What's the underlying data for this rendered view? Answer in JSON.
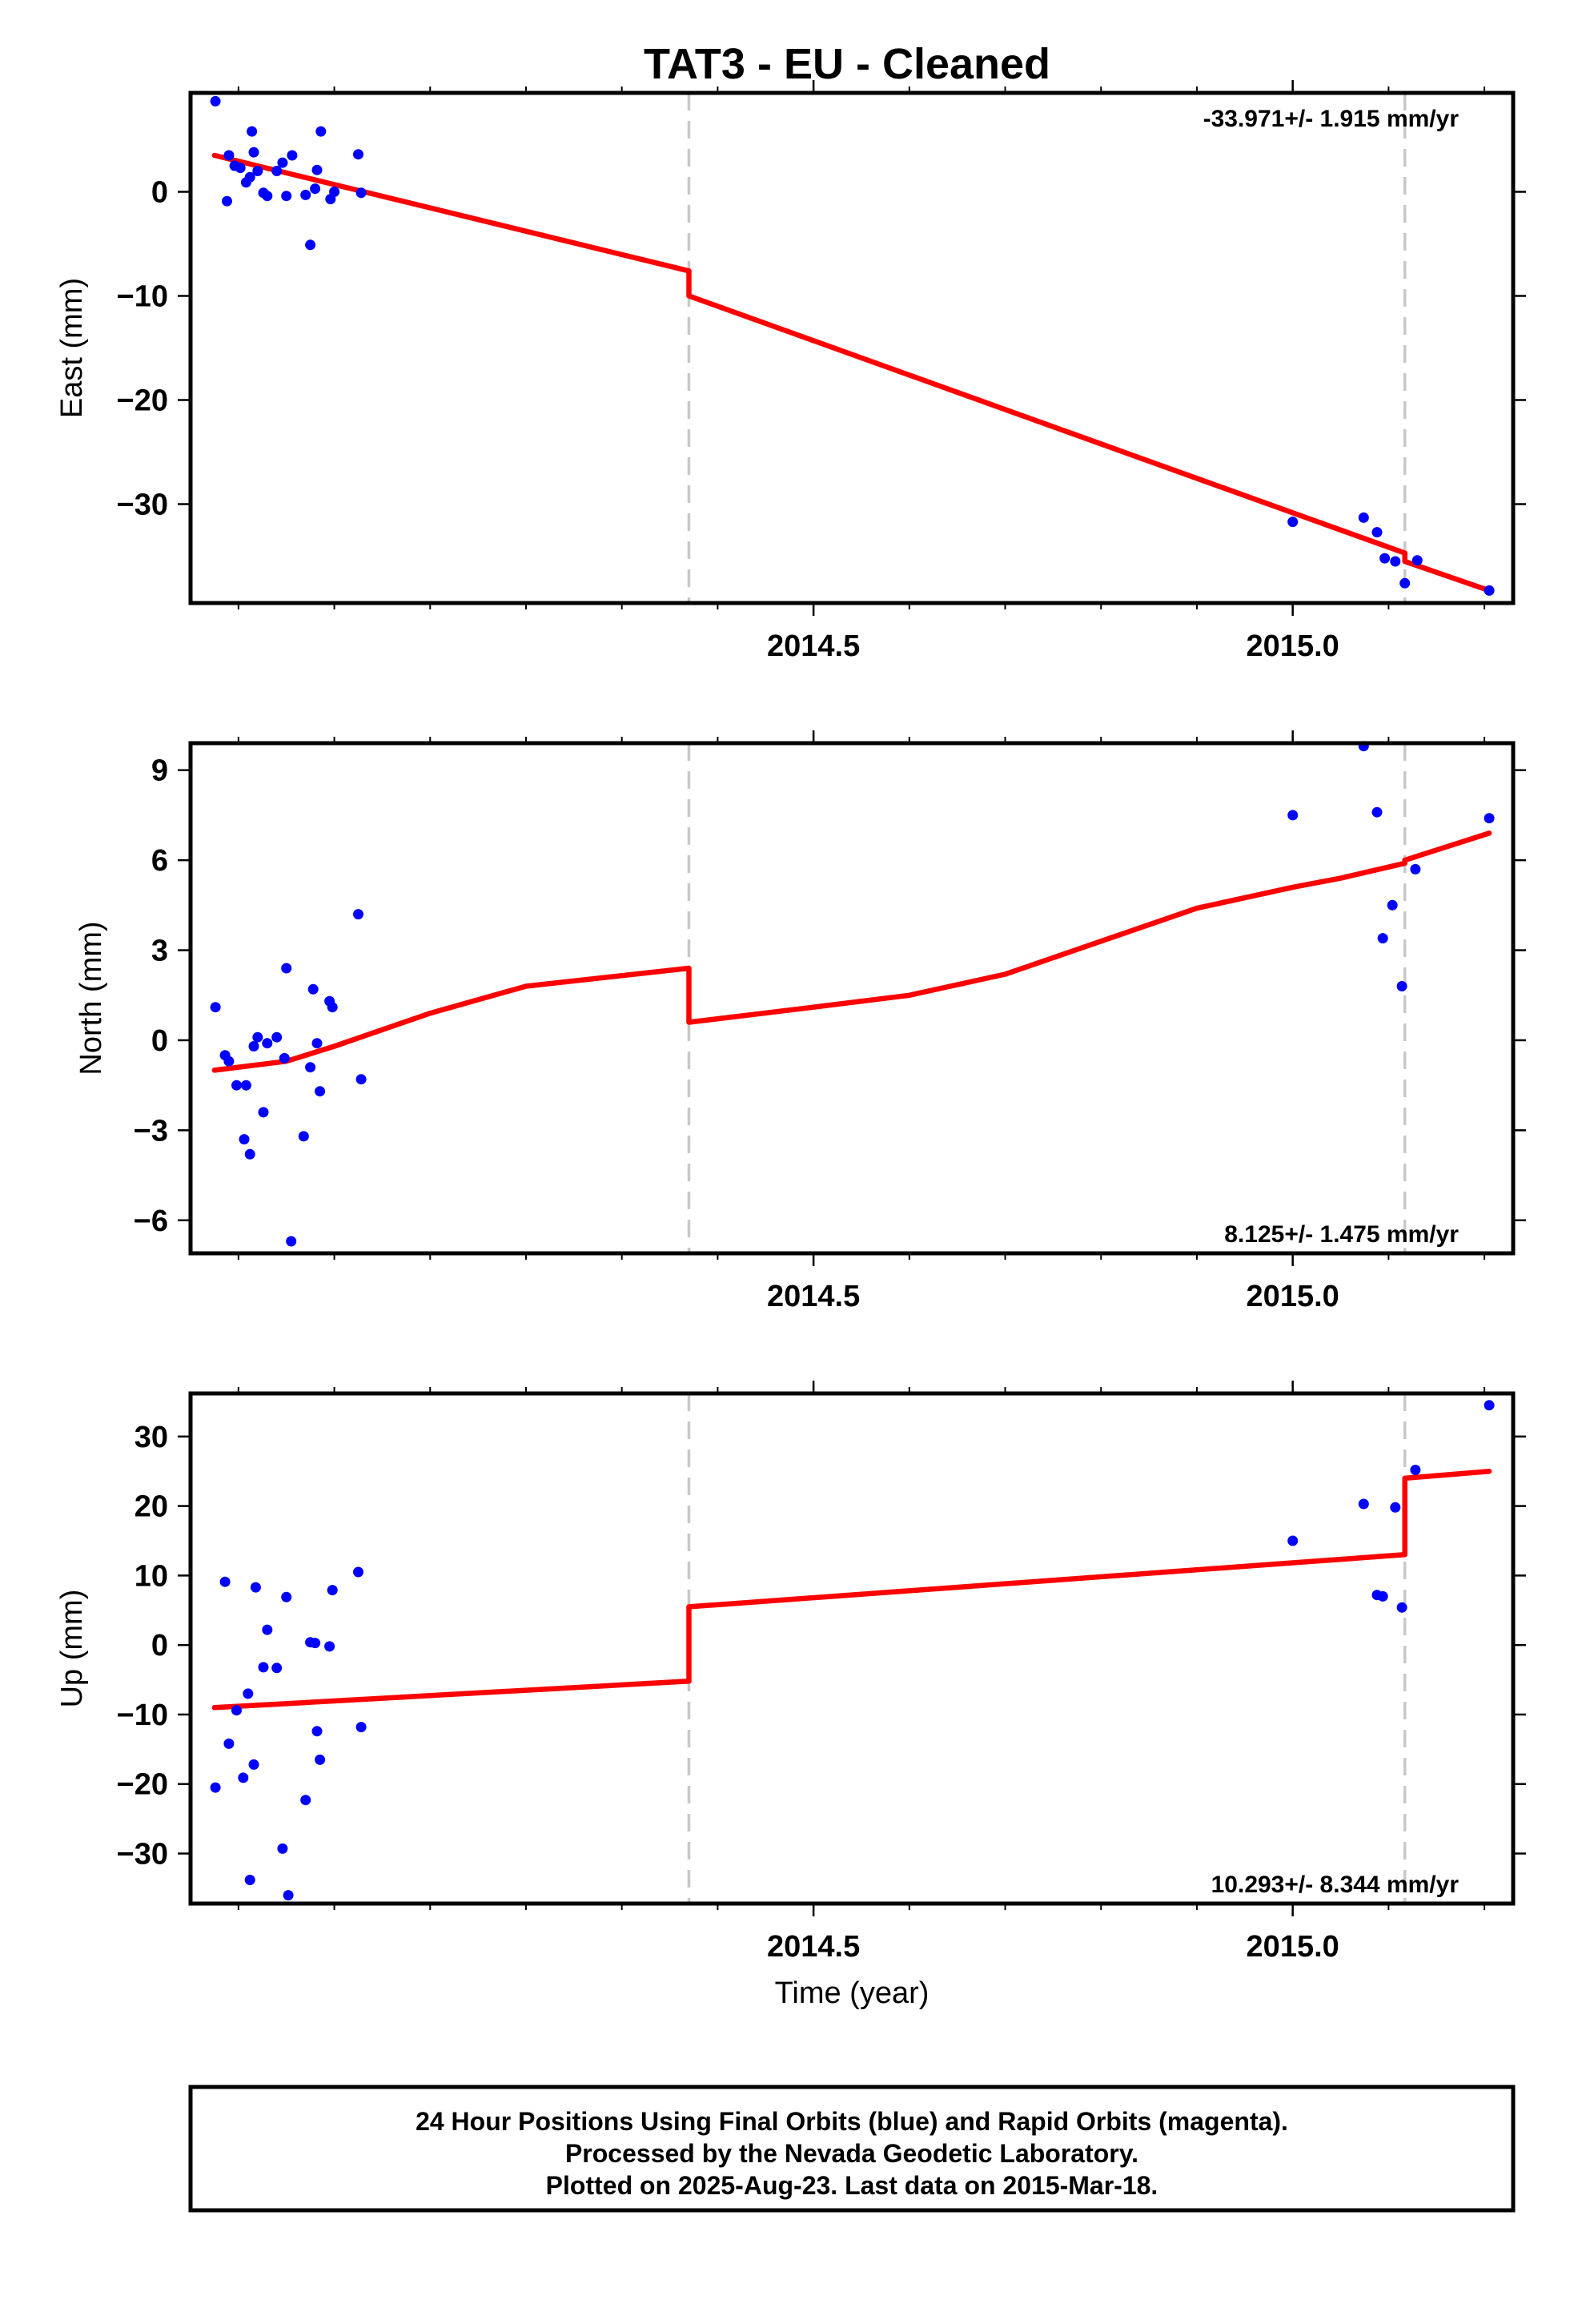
{
  "title": "TAT3  - EU - Cleaned",
  "colors": {
    "data": "#0000ff",
    "model": "#ff0000",
    "break": "#c8c8c8",
    "frame": "#000000"
  },
  "footer": [
    "24 Hour Positions Using Final Orbits (blue) and Rapid Orbits (magenta).",
    "Processed by the Nevada Geodetic Laboratory.",
    "Plotted on 2025-Aug-23. Last data on 2015-Mar-18."
  ],
  "chart_data": [
    {
      "type": "scatter",
      "ylabel": "East (mm)",
      "xlabel": "",
      "rate": "-33.971+/- 1.915 mm/yr",
      "rate_position": "top-right",
      "xlim": [
        2013.85,
        2015.23
      ],
      "ylim": [
        -39.5,
        9.5
      ],
      "xticks": [
        2014.5,
        2015.0
      ],
      "xtick_labels": [
        "2014.5",
        "2015.0"
      ],
      "yticks": [
        0,
        -10,
        -20,
        -30
      ],
      "ytick_labels": [
        "0",
        "−10",
        "−20",
        "−30"
      ],
      "breaks": [
        2014.37,
        2015.117
      ],
      "points": [
        [
          2013.876,
          8.7
        ],
        [
          2013.888,
          -0.9
        ],
        [
          2013.89,
          3.5
        ],
        [
          2013.896,
          2.5
        ],
        [
          2013.902,
          2.3
        ],
        [
          2013.908,
          0.9
        ],
        [
          2013.912,
          1.4
        ],
        [
          2013.914,
          5.8
        ],
        [
          2013.916,
          3.8
        ],
        [
          2013.92,
          2.0
        ],
        [
          2013.926,
          -0.1
        ],
        [
          2013.93,
          -0.4
        ],
        [
          2013.94,
          2.0
        ],
        [
          2013.946,
          2.8
        ],
        [
          2013.95,
          -0.4
        ],
        [
          2013.956,
          3.5
        ],
        [
          2013.97,
          -0.3
        ],
        [
          2013.975,
          -5.1
        ],
        [
          2013.98,
          0.3
        ],
        [
          2013.982,
          2.1
        ],
        [
          2013.986,
          5.8
        ],
        [
          2013.996,
          -0.7
        ],
        [
          2014.0,
          0.0
        ],
        [
          2014.025,
          3.6
        ],
        [
          2014.028,
          -0.1
        ],
        [
          2015.0,
          -31.7
        ],
        [
          2015.074,
          -31.3
        ],
        [
          2015.088,
          -32.7
        ],
        [
          2015.096,
          -35.2
        ],
        [
          2015.107,
          -35.5
        ],
        [
          2015.117,
          -37.6
        ],
        [
          2015.13,
          -35.4
        ],
        [
          2015.205,
          -38.3
        ]
      ],
      "model": [
        [
          [
            2013.875,
            3.5
          ],
          [
            2014.37,
            -7.6
          ]
        ],
        [
          [
            2014.37,
            -10.0
          ],
          [
            2015.117,
            -34.7
          ]
        ],
        [
          [
            2015.117,
            -35.5
          ],
          [
            2015.205,
            -38.3
          ]
        ]
      ]
    },
    {
      "type": "scatter",
      "ylabel": "North (mm)",
      "xlabel": "",
      "rate": "8.125+/- 1.475 mm/yr",
      "rate_position": "bottom-right",
      "xlim": [
        2013.85,
        2015.23
      ],
      "ylim": [
        -7.1,
        9.9
      ],
      "xticks": [
        2014.5,
        2015.0
      ],
      "xtick_labels": [
        "2014.5",
        "2015.0"
      ],
      "yticks": [
        9,
        6,
        3,
        0,
        -3,
        -6
      ],
      "ytick_labels": [
        "9",
        "6",
        "3",
        "0",
        "−3",
        "−6"
      ],
      "breaks": [
        2014.37,
        2015.117
      ],
      "points": [
        [
          2013.876,
          1.1
        ],
        [
          2013.886,
          -0.5
        ],
        [
          2013.89,
          -0.7
        ],
        [
          2013.898,
          -1.5
        ],
        [
          2013.906,
          -3.3
        ],
        [
          2013.908,
          -1.5
        ],
        [
          2013.912,
          -3.8
        ],
        [
          2013.916,
          -0.2
        ],
        [
          2013.92,
          0.1
        ],
        [
          2013.926,
          -2.4
        ],
        [
          2013.93,
          -0.1
        ],
        [
          2013.94,
          0.1
        ],
        [
          2013.948,
          -0.6
        ],
        [
          2013.95,
          2.4
        ],
        [
          2013.955,
          -6.7
        ],
        [
          2013.968,
          -3.2
        ],
        [
          2013.975,
          -0.9
        ],
        [
          2013.978,
          1.7
        ],
        [
          2013.982,
          -0.1
        ],
        [
          2013.985,
          -1.7
        ],
        [
          2013.995,
          1.3
        ],
        [
          2013.998,
          1.1
        ],
        [
          2014.025,
          4.2
        ],
        [
          2014.028,
          -1.3
        ],
        [
          2015.0,
          7.5
        ],
        [
          2015.074,
          9.8
        ],
        [
          2015.088,
          7.6
        ],
        [
          2015.094,
          3.4
        ],
        [
          2015.104,
          4.5
        ],
        [
          2015.114,
          1.8
        ],
        [
          2015.128,
          5.7
        ],
        [
          2015.205,
          7.4
        ]
      ],
      "model": [
        [
          [
            2013.875,
            -1.0
          ],
          [
            2013.95,
            -0.7
          ],
          [
            2014.0,
            -0.2
          ],
          [
            2014.1,
            0.9
          ],
          [
            2014.2,
            1.8
          ],
          [
            2014.37,
            2.4
          ]
        ],
        [
          [
            2014.37,
            0.6
          ],
          [
            2014.5,
            1.1
          ],
          [
            2014.6,
            1.5
          ],
          [
            2014.7,
            2.2
          ],
          [
            2014.8,
            3.3
          ],
          [
            2014.9,
            4.4
          ],
          [
            2015.0,
            5.1
          ],
          [
            2015.05,
            5.4
          ],
          [
            2015.117,
            5.9
          ]
        ],
        [
          [
            2015.117,
            6.0
          ],
          [
            2015.205,
            6.9
          ]
        ]
      ]
    },
    {
      "type": "scatter",
      "ylabel": "Up (mm)",
      "xlabel": "Time (year)",
      "rate": "10.293+/- 8.344 mm/yr",
      "rate_position": "bottom-right",
      "xlim": [
        2013.85,
        2015.23
      ],
      "ylim": [
        -37.2,
        36.2
      ],
      "xticks": [
        2014.5,
        2015.0
      ],
      "xtick_labels": [
        "2014.5",
        "2015.0"
      ],
      "yticks": [
        30,
        20,
        10,
        0,
        -10,
        -20,
        -30
      ],
      "ytick_labels": [
        "30",
        "20",
        "10",
        "0",
        "−10",
        "−20",
        "−30"
      ],
      "breaks": [
        2014.37,
        2015.117
      ],
      "points": [
        [
          2013.876,
          -20.5
        ],
        [
          2013.886,
          9.1
        ],
        [
          2013.89,
          -14.2
        ],
        [
          2013.898,
          -9.4
        ],
        [
          2013.905,
          -19.1
        ],
        [
          2013.91,
          -7.0
        ],
        [
          2013.912,
          -33.8
        ],
        [
          2013.916,
          -17.2
        ],
        [
          2013.918,
          8.3
        ],
        [
          2013.926,
          -3.2
        ],
        [
          2013.93,
          2.2
        ],
        [
          2013.94,
          -3.3
        ],
        [
          2013.946,
          -29.3
        ],
        [
          2013.95,
          6.9
        ],
        [
          2013.952,
          -36.0
        ],
        [
          2013.97,
          -22.3
        ],
        [
          2013.975,
          0.4
        ],
        [
          2013.98,
          0.3
        ],
        [
          2013.982,
          -12.4
        ],
        [
          2013.985,
          -16.5
        ],
        [
          2013.995,
          -0.2
        ],
        [
          2013.998,
          7.9
        ],
        [
          2014.025,
          10.5
        ],
        [
          2014.028,
          -11.8
        ],
        [
          2015.0,
          15.0
        ],
        [
          2015.074,
          20.3
        ],
        [
          2015.088,
          7.2
        ],
        [
          2015.094,
          7.0
        ],
        [
          2015.107,
          19.8
        ],
        [
          2015.114,
          5.4
        ],
        [
          2015.128,
          25.2
        ],
        [
          2015.205,
          34.5
        ]
      ],
      "model": [
        [
          [
            2013.875,
            -9.0
          ],
          [
            2014.37,
            -5.2
          ]
        ],
        [
          [
            2014.37,
            5.5
          ],
          [
            2015.117,
            13.0
          ]
        ],
        [
          [
            2015.117,
            24.0
          ],
          [
            2015.205,
            25.0
          ]
        ]
      ]
    }
  ]
}
